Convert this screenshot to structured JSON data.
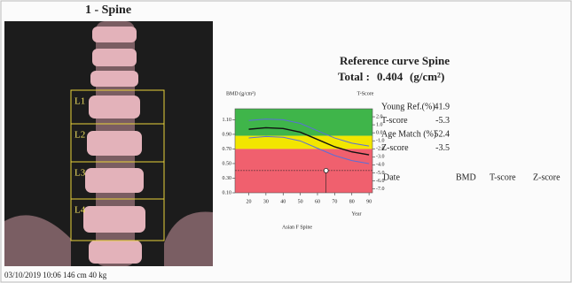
{
  "image": {
    "title": "1 - Spine",
    "regions": [
      "L1",
      "L2",
      "L3",
      "L4"
    ],
    "footer": "03/10/2019 10:06 146 cm 40 kg"
  },
  "report": {
    "title": "Reference curve Spine",
    "total_label": "Total :",
    "total_value": 0.404,
    "total_unit": "(g/cm²)"
  },
  "chart": {
    "type": "line",
    "y_label": "BMD (g/cm²)",
    "y2_label": "T-Score",
    "x_unit": "Year",
    "caption": "Asian F Spine",
    "xlim": [
      12,
      92
    ],
    "xticks": [
      20,
      30,
      40,
      50,
      60,
      70,
      80,
      90
    ],
    "ylim": [
      0.1,
      1.25
    ],
    "yticks": [
      {
        "value": 0.1,
        "label": "0.10"
      },
      {
        "value": 0.3,
        "label": "0.30"
      },
      {
        "value": 0.5,
        "label": "0.50"
      },
      {
        "value": 0.7,
        "label": "0.70"
      },
      {
        "value": 0.9,
        "label": "0.90"
      },
      {
        "value": 1.1,
        "label": "1.10"
      }
    ],
    "y2lim": [
      -7.5,
      3.0
    ],
    "y2ticks": [
      {
        "value": 2,
        "label": "2.0"
      },
      {
        "value": 1,
        "label": "1.0"
      },
      {
        "value": 0,
        "label": "0.0"
      },
      {
        "value": -1,
        "label": "-1.0"
      },
      {
        "value": -2,
        "label": "-2.0"
      },
      {
        "value": -3,
        "label": "-3.0"
      },
      {
        "value": -4,
        "label": "-4.0"
      },
      {
        "value": -5,
        "label": "-5.0"
      },
      {
        "value": -6,
        "label": "-6.0"
      },
      {
        "value": -7,
        "label": "-7.0"
      }
    ],
    "bands": [
      {
        "from": 0.88,
        "to": 1.25,
        "color": "#3fb54a"
      },
      {
        "from": 0.7,
        "to": 0.88,
        "color": "#f2e600"
      },
      {
        "from": 0.1,
        "to": 0.7,
        "color": "#f0606e"
      }
    ],
    "x": [
      20,
      30,
      40,
      50,
      60,
      70,
      80,
      90
    ],
    "series": [
      {
        "color": "#5a6fd8",
        "values": [
          1.09,
          1.11,
          1.1,
          1.05,
          0.95,
          0.85,
          0.78,
          0.74
        ]
      },
      {
        "color": "#111111",
        "values": [
          0.97,
          0.99,
          0.98,
          0.93,
          0.83,
          0.73,
          0.66,
          0.62
        ]
      },
      {
        "color": "#5a6fd8",
        "values": [
          0.85,
          0.87,
          0.86,
          0.81,
          0.71,
          0.61,
          0.54,
          0.5
        ]
      }
    ],
    "point_age": 65
  },
  "stats": {
    "rows": [
      [
        "Young Ref.(%)",
        41.9
      ],
      [
        "T-score",
        -5.3
      ],
      [
        "Age Match (%)",
        52.4
      ],
      [
        "Z-score",
        -3.5
      ]
    ],
    "history_header": [
      "Date",
      "BMD",
      "T-score",
      "Z-score"
    ]
  }
}
